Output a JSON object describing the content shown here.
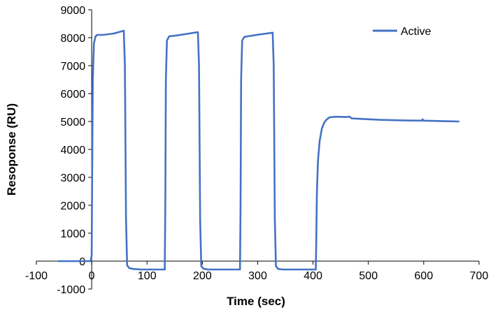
{
  "chart_data": {
    "type": "line",
    "title": "",
    "xlabel": "Time (sec)",
    "ylabel": "Resoponse (RU)",
    "xlim": [
      -100,
      700
    ],
    "ylim": [
      -1000,
      9000
    ],
    "x_ticks": [
      -100,
      0,
      100,
      200,
      300,
      400,
      500,
      600,
      700
    ],
    "y_ticks": [
      -1000,
      0,
      1000,
      2000,
      3000,
      4000,
      5000,
      6000,
      7000,
      8000,
      9000
    ],
    "x_tick_labels": [
      "-100",
      "0",
      "100",
      "200",
      "300",
      "400",
      "500",
      "600",
      "700"
    ],
    "y_tick_labels": [
      "-1000",
      "0",
      "1000",
      "2000",
      "3000",
      "4000",
      "5000",
      "6000",
      "7000",
      "8000",
      "9000"
    ],
    "grid": false,
    "legend_position": "top-right",
    "color": "#4472C4",
    "series": [
      {
        "name": "Active",
        "x": [
          -60,
          -2,
          0,
          1,
          2,
          4,
          7,
          10,
          20,
          40,
          58,
          60,
          62,
          64,
          68,
          75,
          90,
          110,
          132,
          133,
          134,
          136,
          140,
          150,
          170,
          192,
          194,
          196,
          198,
          202,
          210,
          230,
          268,
          269,
          270,
          272,
          276,
          285,
          305,
          327,
          329,
          331,
          333,
          337,
          345,
          365,
          405,
          406,
          407,
          409,
          412,
          416,
          420,
          425,
          430,
          440,
          460,
          466,
          470,
          490,
          520,
          560,
          597,
          598,
          600,
          620,
          640,
          663
        ],
        "y": [
          0,
          0,
          200,
          3500,
          6500,
          7800,
          8050,
          8100,
          8100,
          8150,
          8250,
          7000,
          1500,
          -150,
          -250,
          -280,
          -300,
          -300,
          -300,
          2000,
          6500,
          7900,
          8050,
          8070,
          8130,
          8200,
          7000,
          1500,
          -180,
          -270,
          -300,
          -300,
          -300,
          2000,
          6500,
          7900,
          8030,
          8060,
          8120,
          8180,
          7000,
          1500,
          -180,
          -280,
          -300,
          -300,
          -300,
          1000,
          2500,
          3600,
          4300,
          4750,
          4950,
          5080,
          5150,
          5170,
          5160,
          5170,
          5110,
          5090,
          5060,
          5040,
          5030,
          5080,
          5030,
          5020,
          5010,
          5000
        ]
      }
    ]
  }
}
